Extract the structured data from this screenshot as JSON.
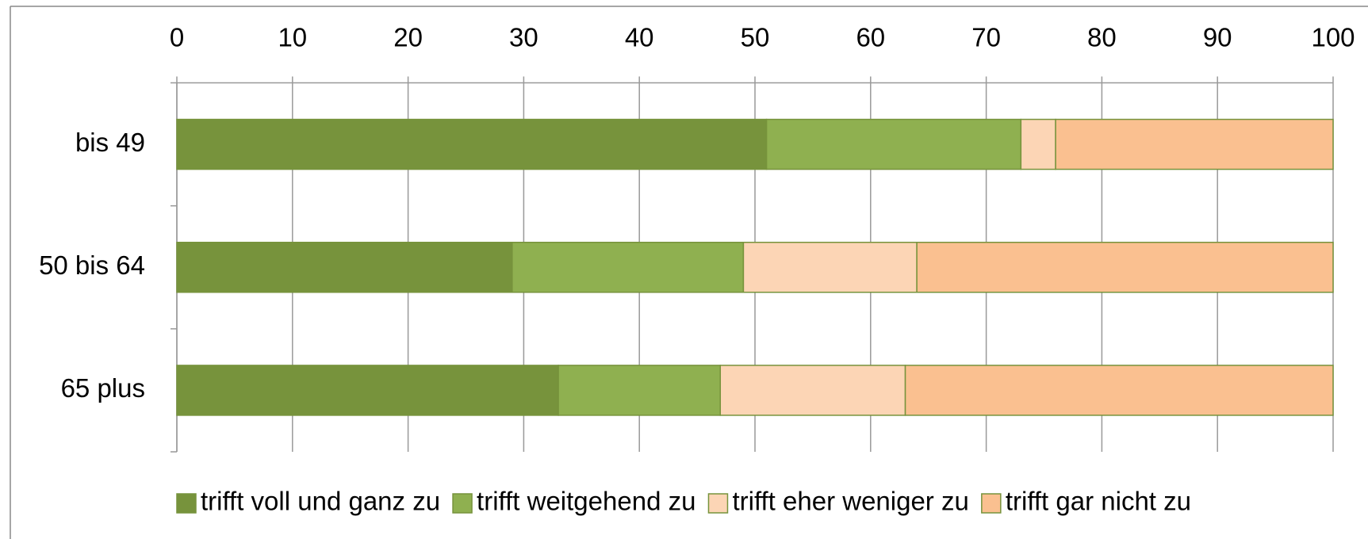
{
  "chart_data": {
    "type": "stacked_bar_horizontal",
    "categories": [
      "bis 49",
      "50 bis 64",
      "65 plus"
    ],
    "series": [
      {
        "name": "trifft voll und ganz zu",
        "color": "#77933c",
        "values": [
          51,
          29,
          33
        ]
      },
      {
        "name": "trifft weitgehend zu",
        "color": "#8fb050",
        "values": [
          22,
          20,
          14
        ]
      },
      {
        "name": "trifft eher weniger zu",
        "color": "#fcd5b5",
        "values": [
          3,
          15,
          16
        ]
      },
      {
        "name": "trifft gar nicht zu",
        "color": "#fac090",
        "values": [
          24,
          36,
          37
        ]
      }
    ],
    "xlim": [
      0,
      100
    ],
    "xticks": [
      0,
      10,
      20,
      30,
      40,
      50,
      60,
      70,
      80,
      90,
      100
    ],
    "grid": true,
    "legend": "bottom"
  }
}
